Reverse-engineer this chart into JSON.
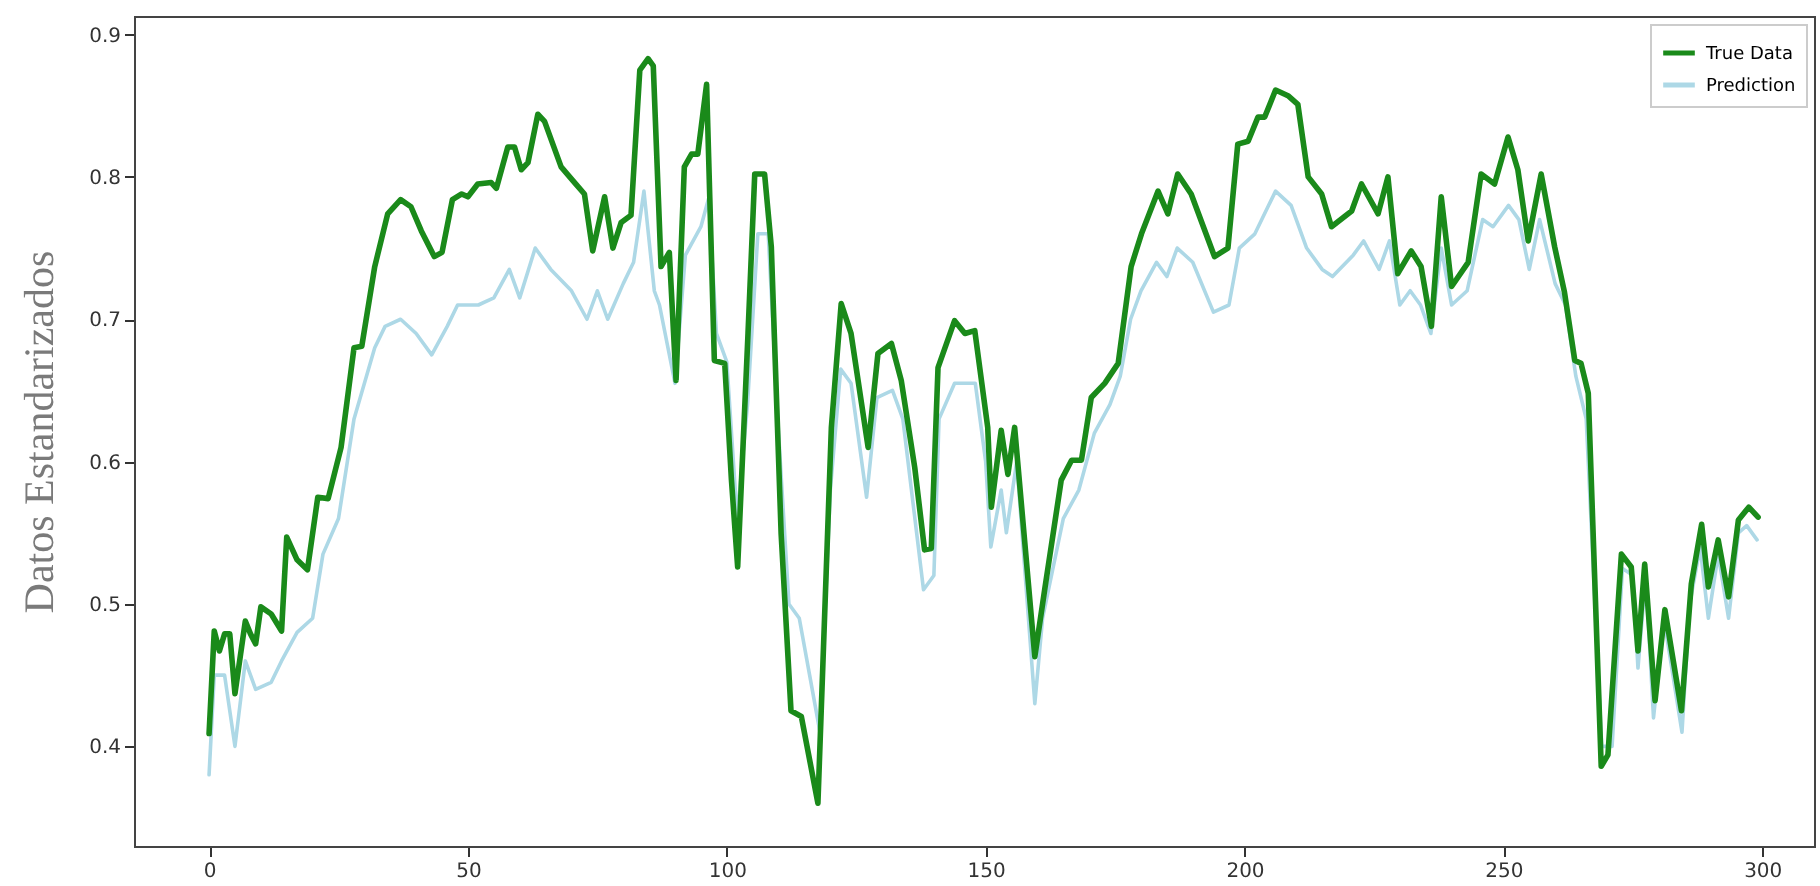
{
  "chart_data": {
    "type": "line",
    "ylabel": "Datos Estandarizados",
    "xlim": [
      -14.5,
      310
    ],
    "ylim": [
      0.33,
      0.913
    ],
    "xticks": [
      0,
      50,
      100,
      150,
      200,
      250,
      300
    ],
    "yticks": [
      0.4,
      0.5,
      0.6,
      0.7,
      0.8,
      0.9
    ],
    "legend": "top right",
    "series": [
      {
        "name": "True Data",
        "color": "#1a8a1a",
        "x": [
          0,
          1,
          2,
          3,
          4,
          5,
          7,
          8,
          9,
          10,
          12,
          14,
          15,
          17,
          19,
          21,
          23,
          25.5,
          28,
          29.5,
          32,
          34.5,
          37,
          39,
          41,
          43.5,
          45,
          47,
          48.8,
          50,
          51.9,
          54.5,
          55.5,
          57.7,
          59,
          60.3,
          61.6,
          63.5,
          64.8,
          68,
          70.6,
          72.5,
          74.1,
          76.4,
          78,
          79.6,
          81.5,
          83.2,
          84.8,
          85.8,
          87.3,
          88.9,
          90.2,
          91.8,
          93.2,
          94.4,
          96.1,
          97.6,
          99.6,
          100.9,
          102.1,
          104.1,
          105.4,
          107.3,
          108.6,
          110.5,
          112.4,
          114.4,
          117.6,
          120.2,
          122.1,
          124,
          127.3,
          129.2,
          131.8,
          133.7,
          136.3,
          138.2,
          139.5,
          140.8,
          144,
          146,
          147.9,
          150.4,
          151.1,
          153,
          154.3,
          155.6,
          159.5,
          161.4,
          164.6,
          166.6,
          168.5,
          170.4,
          173,
          175.6,
          178.1,
          180.1,
          183.3,
          185.2,
          187.1,
          189.7,
          194.2,
          196.8,
          198.7,
          200.7,
          202.6,
          203.9,
          206,
          208.4,
          210.3,
          212.3,
          214.9,
          216.8,
          220.7,
          222.6,
          225.8,
          227.7,
          229.6,
          232.2,
          234.1,
          236.1,
          238,
          240,
          243.2,
          245.7,
          248.3,
          250.9,
          252.8,
          254.8,
          257.3,
          259.9,
          261.8,
          263.8,
          265,
          266.4,
          268.9,
          270.2,
          272.8,
          274.7,
          276,
          277.3,
          279.3,
          281.2,
          284.4,
          286.3,
          288.3,
          289.6,
          291.5,
          293.5,
          295.4,
          297.4,
          299.2
        ],
        "values": [
          0.409,
          0.481,
          0.467,
          0.479,
          0.479,
          0.437,
          0.488,
          0.479,
          0.472,
          0.498,
          0.493,
          0.481,
          0.547,
          0.531,
          0.524,
          0.575,
          0.574,
          0.61,
          0.68,
          0.681,
          0.737,
          0.774,
          0.784,
          0.779,
          0.762,
          0.744,
          0.747,
          0.784,
          0.788,
          0.786,
          0.795,
          0.796,
          0.792,
          0.821,
          0.821,
          0.805,
          0.81,
          0.844,
          0.839,
          0.807,
          0.796,
          0.788,
          0.748,
          0.786,
          0.75,
          0.768,
          0.773,
          0.875,
          0.883,
          0.878,
          0.737,
          0.747,
          0.657,
          0.807,
          0.816,
          0.816,
          0.865,
          0.671,
          0.669,
          0.587,
          0.526,
          0.69,
          0.802,
          0.802,
          0.751,
          0.549,
          0.425,
          0.421,
          0.36,
          0.624,
          0.711,
          0.69,
          0.61,
          0.676,
          0.683,
          0.657,
          0.596,
          0.538,
          0.539,
          0.666,
          0.699,
          0.69,
          0.692,
          0.624,
          0.568,
          0.622,
          0.591,
          0.624,
          0.463,
          0.51,
          0.587,
          0.601,
          0.601,
          0.645,
          0.655,
          0.669,
          0.737,
          0.76,
          0.79,
          0.774,
          0.802,
          0.788,
          0.744,
          0.75,
          0.823,
          0.825,
          0.842,
          0.842,
          0.861,
          0.857,
          0.851,
          0.8,
          0.788,
          0.765,
          0.776,
          0.795,
          0.774,
          0.8,
          0.732,
          0.748,
          0.737,
          0.695,
          0.786,
          0.723,
          0.74,
          0.802,
          0.795,
          0.828,
          0.805,
          0.755,
          0.802,
          0.751,
          0.719,
          0.671,
          0.669,
          0.648,
          0.386,
          0.394,
          0.535,
          0.526,
          0.467,
          0.528,
          0.432,
          0.496,
          0.425,
          0.514,
          0.556,
          0.512,
          0.545,
          0.505,
          0.559,
          0.568,
          0.561
        ]
      },
      {
        "name": "Prediction",
        "color": "#add8e6",
        "x": [
          0,
          1,
          3,
          5,
          7,
          9,
          12,
          14,
          17,
          20,
          22,
          25,
          28,
          32,
          34,
          37,
          40,
          43,
          46,
          48,
          52,
          55,
          58,
          60,
          63,
          66,
          70,
          73,
          75,
          77,
          80,
          82,
          84,
          86,
          87,
          90,
          92,
          95,
          96.5,
          98,
          100,
          102,
          104,
          106,
          108,
          110,
          112,
          114,
          116,
          118,
          120,
          122,
          124,
          127,
          129,
          132,
          134,
          136,
          138,
          140,
          141,
          144,
          148,
          150,
          151,
          153,
          154,
          156,
          159.5,
          161,
          165,
          168,
          171,
          174,
          176,
          178,
          180,
          183,
          185,
          187,
          190,
          194,
          197,
          199,
          202,
          206,
          209,
          212,
          215,
          217,
          221,
          223,
          226,
          228,
          230,
          232,
          234,
          236,
          238,
          240,
          243,
          246,
          248,
          251,
          253,
          255,
          257,
          260,
          262,
          264,
          266,
          269,
          271,
          273,
          275,
          276,
          277.5,
          279,
          281,
          284.5,
          286,
          288,
          289.6,
          291.5,
          293.5,
          295.4,
          297,
          299
        ],
        "values": [
          0.38,
          0.45,
          0.45,
          0.4,
          0.46,
          0.44,
          0.445,
          0.46,
          0.48,
          0.49,
          0.535,
          0.56,
          0.63,
          0.68,
          0.695,
          0.7,
          0.69,
          0.675,
          0.695,
          0.71,
          0.71,
          0.715,
          0.735,
          0.715,
          0.75,
          0.735,
          0.72,
          0.7,
          0.72,
          0.7,
          0.725,
          0.74,
          0.79,
          0.72,
          0.71,
          0.655,
          0.745,
          0.765,
          0.785,
          0.69,
          0.67,
          0.56,
          0.64,
          0.76,
          0.76,
          0.62,
          0.5,
          0.49,
          0.45,
          0.41,
          0.58,
          0.665,
          0.655,
          0.575,
          0.645,
          0.65,
          0.63,
          0.57,
          0.51,
          0.52,
          0.63,
          0.655,
          0.655,
          0.6,
          0.54,
          0.58,
          0.55,
          0.6,
          0.43,
          0.49,
          0.56,
          0.58,
          0.62,
          0.64,
          0.66,
          0.7,
          0.72,
          0.74,
          0.73,
          0.75,
          0.74,
          0.705,
          0.71,
          0.75,
          0.76,
          0.79,
          0.78,
          0.75,
          0.735,
          0.73,
          0.745,
          0.755,
          0.735,
          0.755,
          0.71,
          0.72,
          0.71,
          0.69,
          0.75,
          0.71,
          0.72,
          0.77,
          0.765,
          0.78,
          0.77,
          0.735,
          0.77,
          0.725,
          0.71,
          0.66,
          0.63,
          0.4,
          0.4,
          0.525,
          0.52,
          0.455,
          0.52,
          0.42,
          0.49,
          0.41,
          0.5,
          0.54,
          0.49,
          0.535,
          0.49,
          0.55,
          0.555,
          0.545
        ]
      }
    ]
  }
}
